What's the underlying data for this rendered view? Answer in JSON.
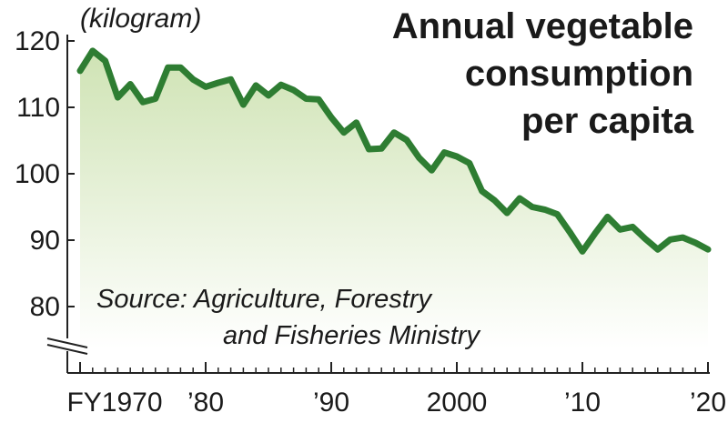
{
  "chart_data": {
    "type": "area",
    "title": [
      "Annual vegetable",
      "consumption",
      "per capita"
    ],
    "unit_label": "(kilogram)",
    "source": [
      "Source: Agriculture, Forestry",
      "and Fisheries Ministry"
    ],
    "x": [
      1970,
      1971,
      1972,
      1973,
      1974,
      1975,
      1976,
      1977,
      1978,
      1979,
      1980,
      1981,
      1982,
      1983,
      1984,
      1985,
      1986,
      1987,
      1988,
      1989,
      1990,
      1991,
      1992,
      1993,
      1994,
      1995,
      1996,
      1997,
      1998,
      1999,
      2000,
      2001,
      2002,
      2003,
      2004,
      2005,
      2006,
      2007,
      2008,
      2009,
      2010,
      2011,
      2012,
      2013,
      2014,
      2015,
      2016,
      2017,
      2018,
      2019,
      2020
    ],
    "series": [
      {
        "values": [
          115.5,
          118.5,
          117,
          111.5,
          113.5,
          110.8,
          111.3,
          116,
          116,
          114.2,
          113.1,
          113.7,
          114.2,
          110.4,
          113.3,
          111.8,
          113.4,
          112.6,
          111.3,
          111.2,
          108.5,
          106.2,
          107.7,
          103.7,
          103.8,
          106.2,
          105.1,
          102.4,
          100.5,
          103.2,
          102.6,
          101.6,
          97.4,
          96,
          94.1,
          96.3,
          95,
          94.6,
          93.9,
          91.2,
          88.3,
          91,
          93.5,
          91.6,
          92,
          90.2,
          88.6,
          90.1,
          90.4,
          89.6,
          88.6
        ]
      }
    ],
    "x_tick_values": [
      1970,
      1980,
      1990,
      2000,
      2010,
      2020
    ],
    "x_tick_labels": [
      "FY1970",
      "’80",
      "’90",
      "2000",
      "’10",
      "’20"
    ],
    "y_ticks": [
      80,
      90,
      100,
      110,
      120
    ],
    "xlim": [
      1970,
      2020
    ],
    "ylim": [
      80,
      120
    ],
    "axis_break": true,
    "grid": false,
    "line_color": "#2e7d32",
    "fill_top_color": "#cfe3b4",
    "fill_bottom_color": "#ffffff"
  }
}
